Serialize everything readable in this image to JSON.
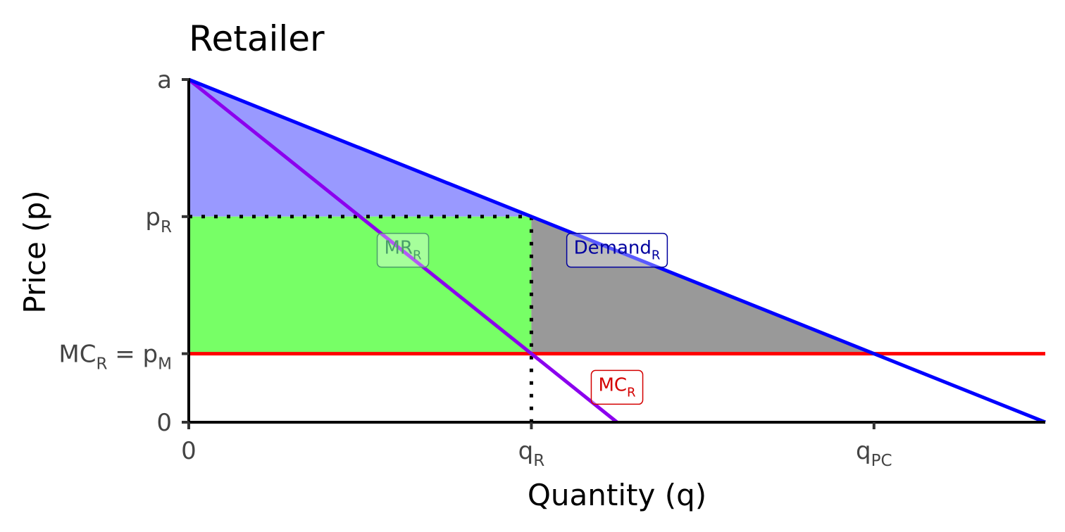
{
  "chart_data": {
    "type": "line",
    "title": "Retailer",
    "xlabel": "Quantity (q)",
    "ylabel": "Price (p)",
    "xlim": [
      0,
      10
    ],
    "ylim": [
      0,
      10
    ],
    "x_ticks": [
      {
        "value": 0,
        "text": "0",
        "sub": ""
      },
      {
        "value": 4,
        "text": "q",
        "sub": "R"
      },
      {
        "value": 8,
        "text": "q",
        "sub": "PC"
      }
    ],
    "y_ticks": [
      {
        "value": 0,
        "text": "0",
        "sub": "",
        "text2": "",
        "sub2": ""
      },
      {
        "value": 2,
        "text": "MC",
        "sub": "R",
        "text2": " = p",
        "sub2": "M"
      },
      {
        "value": 6,
        "text": "p",
        "sub": "R",
        "text2": "",
        "sub2": ""
      },
      {
        "value": 10,
        "text": "a",
        "sub": "",
        "text2": "",
        "sub2": ""
      }
    ],
    "series": [
      {
        "name": "Demand_R",
        "color": "#0000ff",
        "x": [
          0,
          10
        ],
        "y": [
          10,
          0
        ]
      },
      {
        "name": "MR_R",
        "color": "#8b00ee",
        "x": [
          0,
          5
        ],
        "y": [
          10,
          0
        ]
      },
      {
        "name": "MC_R",
        "color": "#ff0000",
        "x": [
          0,
          10
        ],
        "y": [
          2,
          2
        ]
      }
    ],
    "regions": [
      {
        "kind": "consumer-surplus",
        "color": "#9999ff",
        "points": [
          [
            0,
            10
          ],
          [
            4,
            6
          ],
          [
            0,
            6
          ]
        ]
      },
      {
        "kind": "profit",
        "color": "#77ff66",
        "points": [
          [
            0,
            6
          ],
          [
            4,
            6
          ],
          [
            4,
            2
          ],
          [
            0,
            2
          ]
        ]
      },
      {
        "kind": "deadweight-loss",
        "color": "#999999",
        "points": [
          [
            4,
            6
          ],
          [
            8,
            2
          ],
          [
            4,
            2
          ]
        ]
      }
    ],
    "reference_lines": [
      {
        "from": [
          0,
          6
        ],
        "to": [
          4,
          6
        ],
        "style": "dotted"
      },
      {
        "from": [
          4,
          6
        ],
        "to": [
          4,
          0
        ],
        "style": "dotted"
      }
    ],
    "annotations": [
      {
        "text": "MR",
        "sub": "R",
        "x": 2.5,
        "y": 5.1,
        "color": "#4a9e6a"
      },
      {
        "text": "Demand",
        "sub": "R",
        "x": 5,
        "y": 5.1,
        "color": "#00009e"
      },
      {
        "text": "MC",
        "sub": "R",
        "x": 5,
        "y": 1.1,
        "color": "#d40000"
      }
    ]
  }
}
